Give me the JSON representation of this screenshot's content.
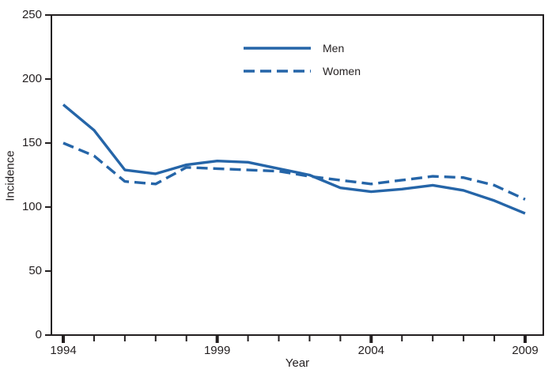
{
  "chart_data": {
    "type": "line",
    "title": "",
    "xlabel": "Year",
    "ylabel": "Incidence",
    "x": [
      1994,
      1995,
      1996,
      1997,
      1998,
      1999,
      2000,
      2001,
      2002,
      2003,
      2004,
      2005,
      2006,
      2007,
      2008,
      2009
    ],
    "series": [
      {
        "name": "Men",
        "style": "solid",
        "values": [
          180,
          160,
          129,
          126,
          133,
          136,
          135,
          130,
          125,
          115,
          112,
          114,
          117,
          113,
          105,
          95
        ]
      },
      {
        "name": "Women",
        "style": "dashed",
        "values": [
          150,
          140,
          120,
          118,
          131,
          130,
          129,
          128,
          124,
          121,
          118,
          121,
          124,
          123,
          117,
          106
        ]
      }
    ],
    "xlim": [
      1994,
      2009
    ],
    "ylim": [
      0,
      250
    ],
    "yticks": [
      0,
      50,
      100,
      150,
      200,
      250
    ],
    "xticks_labeled": [
      1994,
      1999,
      2004,
      2009
    ],
    "xticks_minor": [
      1995,
      1996,
      1997,
      1998,
      2000,
      2001,
      2002,
      2003,
      2005,
      2006,
      2007,
      2008
    ],
    "grid": false,
    "legend_position": "upper-center-inside",
    "line_color": "#2565a8",
    "axis_color": "#231f20",
    "background_color": "#ffffff"
  }
}
